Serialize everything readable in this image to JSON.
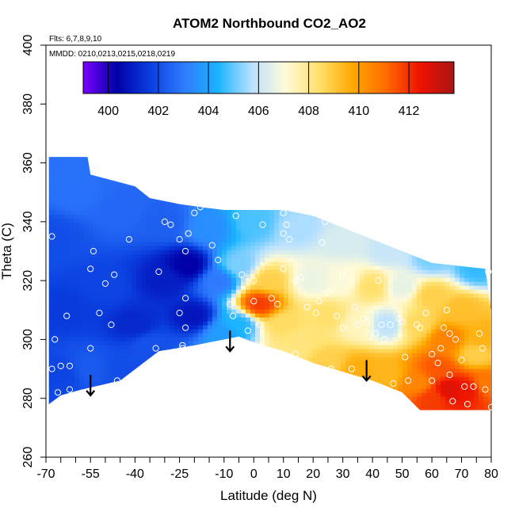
{
  "chart_data": {
    "type": "heatmap",
    "title": "ATOM2 Northbound CO2_AO2",
    "subtitle_flights": "Flts: 6,7,8,9,10",
    "subtitle_dates": "MMDD: 0210,0213,0215,0218,0219",
    "xlabel": "Latitude (deg N)",
    "ylabel": "Theta (C)",
    "xlim": [
      -70,
      80
    ],
    "ylim": [
      260,
      400
    ],
    "x_ticks": [
      -70,
      -55,
      -40,
      -25,
      -10,
      0,
      10,
      20,
      30,
      40,
      50,
      60,
      70,
      80
    ],
    "x_minor_ticks": [
      -65,
      -60,
      -50,
      -45,
      -35,
      -30,
      -20,
      -15,
      -5,
      5,
      15,
      25,
      35,
      45,
      55,
      65,
      75
    ],
    "y_ticks": [
      260,
      280,
      300,
      320,
      340,
      360,
      380,
      400
    ],
    "colorbar": {
      "range": [
        399,
        413.8
      ],
      "ticks": [
        400,
        402,
        404,
        406,
        408,
        410,
        412
      ],
      "colors": [
        "#7a00ff",
        "#0000a8",
        "#0a3fe0",
        "#2f7cff",
        "#1ab4ff",
        "#b9e1ff",
        "#fffbd8",
        "#ffe06a",
        "#ffa800",
        "#ff6a00",
        "#ee1200",
        "#a81515"
      ]
    },
    "field_envelope": [
      [
        -69,
        278
      ],
      [
        -69,
        362
      ],
      [
        -56,
        362
      ],
      [
        -55,
        356
      ],
      [
        -40,
        352
      ],
      [
        -35,
        348
      ],
      [
        -25,
        346
      ],
      [
        -18,
        345
      ],
      [
        -10,
        344
      ],
      [
        0,
        344
      ],
      [
        10,
        344
      ],
      [
        20,
        342
      ],
      [
        30,
        338
      ],
      [
        40,
        334
      ],
      [
        50,
        330
      ],
      [
        60,
        326
      ],
      [
        78,
        324
      ],
      [
        80,
        310
      ],
      [
        80,
        276
      ],
      [
        56,
        276
      ],
      [
        50,
        282
      ],
      [
        40,
        286
      ],
      [
        20,
        292
      ],
      [
        10,
        296
      ],
      [
        0,
        299
      ],
      [
        -5,
        301
      ],
      [
        -20,
        298
      ],
      [
        -32,
        296
      ],
      [
        -45,
        286
      ],
      [
        -58,
        283
      ],
      [
        -65,
        281
      ]
    ],
    "field_anchors": [
      {
        "lat": -68,
        "theta": 335,
        "co2": 402.0
      },
      {
        "lat": -60,
        "theta": 350,
        "co2": 402.8
      },
      {
        "lat": -45,
        "theta": 345,
        "co2": 402.6
      },
      {
        "lat": -30,
        "theta": 340,
        "co2": 402.4
      },
      {
        "lat": -15,
        "theta": 338,
        "co2": 403.5
      },
      {
        "lat": 0,
        "theta": 340,
        "co2": 404.8
      },
      {
        "lat": 15,
        "theta": 338,
        "co2": 405.6
      },
      {
        "lat": 30,
        "theta": 333,
        "co2": 406.3
      },
      {
        "lat": 45,
        "theta": 330,
        "co2": 406.0
      },
      {
        "lat": 60,
        "theta": 327,
        "co2": 405.2
      },
      {
        "lat": 75,
        "theta": 324,
        "co2": 404.6
      },
      {
        "lat": -62,
        "theta": 310,
        "co2": 401.6
      },
      {
        "lat": -50,
        "theta": 318,
        "co2": 401.8
      },
      {
        "lat": -40,
        "theta": 305,
        "co2": 401.2
      },
      {
        "lat": -30,
        "theta": 320,
        "co2": 401.0
      },
      {
        "lat": -22,
        "theta": 325,
        "co2": 400.3
      },
      {
        "lat": -20,
        "theta": 308,
        "co2": 400.8
      },
      {
        "lat": -12,
        "theta": 320,
        "co2": 403.0
      },
      {
        "lat": -5,
        "theta": 305,
        "co2": 404.4
      },
      {
        "lat": -5,
        "theta": 325,
        "co2": 405.2
      },
      {
        "lat": 2,
        "theta": 312,
        "co2": 411.8
      },
      {
        "lat": 5,
        "theta": 320,
        "co2": 408.8
      },
      {
        "lat": 10,
        "theta": 305,
        "co2": 408.5
      },
      {
        "lat": 15,
        "theta": 300,
        "co2": 408.2
      },
      {
        "lat": 20,
        "theta": 320,
        "co2": 406.7
      },
      {
        "lat": 25,
        "theta": 308,
        "co2": 408.4
      },
      {
        "lat": 30,
        "theta": 320,
        "co2": 407.0
      },
      {
        "lat": 35,
        "theta": 305,
        "co2": 407.4
      },
      {
        "lat": 40,
        "theta": 318,
        "co2": 408.4
      },
      {
        "lat": 45,
        "theta": 305,
        "co2": 405.8
      },
      {
        "lat": 50,
        "theta": 318,
        "co2": 406.6
      },
      {
        "lat": 55,
        "theta": 305,
        "co2": 408.6
      },
      {
        "lat": 60,
        "theta": 315,
        "co2": 408.8
      },
      {
        "lat": 65,
        "theta": 300,
        "co2": 410.6
      },
      {
        "lat": 70,
        "theta": 310,
        "co2": 409.2
      },
      {
        "lat": 75,
        "theta": 295,
        "co2": 408.8
      },
      {
        "lat": -65,
        "theta": 288,
        "co2": 401.8
      },
      {
        "lat": -55,
        "theta": 290,
        "co2": 402.3
      },
      {
        "lat": -45,
        "theta": 290,
        "co2": 402.0
      },
      {
        "lat": -35,
        "theta": 298,
        "co2": 402.1
      },
      {
        "lat": -10,
        "theta": 302,
        "co2": 403.8
      },
      {
        "lat": 10,
        "theta": 293,
        "co2": 408.0
      },
      {
        "lat": 25,
        "theta": 292,
        "co2": 408.8
      },
      {
        "lat": 35,
        "theta": 290,
        "co2": 409.6
      },
      {
        "lat": 45,
        "theta": 288,
        "co2": 409.4
      },
      {
        "lat": 55,
        "theta": 285,
        "co2": 410.5
      },
      {
        "lat": 62,
        "theta": 290,
        "co2": 411.4
      },
      {
        "lat": 66,
        "theta": 283,
        "co2": 412.8
      },
      {
        "lat": 72,
        "theta": 283,
        "co2": 412.4
      },
      {
        "lat": 78,
        "theta": 285,
        "co2": 410.8
      },
      {
        "lat": 77,
        "theta": 300,
        "co2": 409.5
      },
      {
        "lat": 60,
        "theta": 280,
        "co2": 411.8
      }
    ],
    "observations": [
      [
        -68,
        335
      ],
      [
        -67,
        300
      ],
      [
        -68,
        290
      ],
      [
        -66,
        282
      ],
      [
        -65,
        291
      ],
      [
        -62,
        291
      ],
      [
        -62,
        283
      ],
      [
        -63,
        308
      ],
      [
        -55,
        297
      ],
      [
        -55,
        324
      ],
      [
        -54,
        330
      ],
      [
        -52,
        309
      ],
      [
        -50,
        319
      ],
      [
        -48,
        305
      ],
      [
        -47,
        322
      ],
      [
        -46,
        286
      ],
      [
        -42,
        334
      ],
      [
        -33,
        297
      ],
      [
        -32,
        323
      ],
      [
        -30,
        340
      ],
      [
        -28,
        339
      ],
      [
        -25,
        309
      ],
      [
        -25,
        334
      ],
      [
        -24,
        298
      ],
      [
        -24,
        297
      ],
      [
        -23,
        314
      ],
      [
        -23,
        304
      ],
      [
        -23,
        330
      ],
      [
        -22,
        336
      ],
      [
        -20,
        343
      ],
      [
        -18,
        345
      ],
      [
        -14,
        332
      ],
      [
        -12,
        327
      ],
      [
        -8,
        312
      ],
      [
        -7,
        308
      ],
      [
        -6,
        342
      ],
      [
        -4,
        322
      ],
      [
        -2,
        303
      ],
      [
        0,
        313
      ],
      [
        0,
        320
      ],
      [
        2,
        305
      ],
      [
        3,
        339
      ],
      [
        6,
        314
      ],
      [
        8,
        312
      ],
      [
        10,
        324
      ],
      [
        10,
        336
      ],
      [
        10,
        343
      ],
      [
        11,
        339
      ],
      [
        12,
        334
      ],
      [
        14,
        320
      ],
      [
        14,
        295
      ],
      [
        16,
        321
      ],
      [
        18,
        311
      ],
      [
        20,
        343
      ],
      [
        21,
        309
      ],
      [
        22,
        313
      ],
      [
        23,
        333
      ],
      [
        24,
        340
      ],
      [
        25,
        316
      ],
      [
        26,
        290
      ],
      [
        28,
        308
      ],
      [
        30,
        304
      ],
      [
        30,
        322
      ],
      [
        31,
        340
      ],
      [
        33,
        290
      ],
      [
        34,
        311
      ],
      [
        35,
        305
      ],
      [
        37,
        307
      ],
      [
        38,
        306
      ],
      [
        41,
        302
      ],
      [
        42,
        320
      ],
      [
        43,
        305
      ],
      [
        44,
        300
      ],
      [
        46,
        305
      ],
      [
        47,
        285
      ],
      [
        49,
        307
      ],
      [
        50,
        306
      ],
      [
        51,
        294
      ],
      [
        52,
        286
      ],
      [
        55,
        305
      ],
      [
        56,
        304
      ],
      [
        58,
        309
      ],
      [
        60,
        286
      ],
      [
        60,
        295
      ],
      [
        62,
        292
      ],
      [
        63,
        297
      ],
      [
        64,
        304
      ],
      [
        65,
        310
      ],
      [
        66,
        302
      ],
      [
        66,
        288
      ],
      [
        67,
        279
      ],
      [
        68,
        300
      ],
      [
        70,
        293
      ],
      [
        71,
        284
      ],
      [
        72,
        278
      ],
      [
        74,
        284
      ],
      [
        76,
        302
      ],
      [
        77,
        297
      ],
      [
        78,
        283
      ],
      [
        79,
        323
      ],
      [
        80,
        277
      ]
    ],
    "arrows": [
      {
        "lat": -55,
        "theta_top": 288,
        "theta_bottom": 281
      },
      {
        "lat": -8,
        "theta_top": 303,
        "theta_bottom": 296
      },
      {
        "lat": 38,
        "theta_top": 293,
        "theta_bottom": 286
      }
    ],
    "grid": false,
    "legend": "colorbar-top-inside"
  }
}
